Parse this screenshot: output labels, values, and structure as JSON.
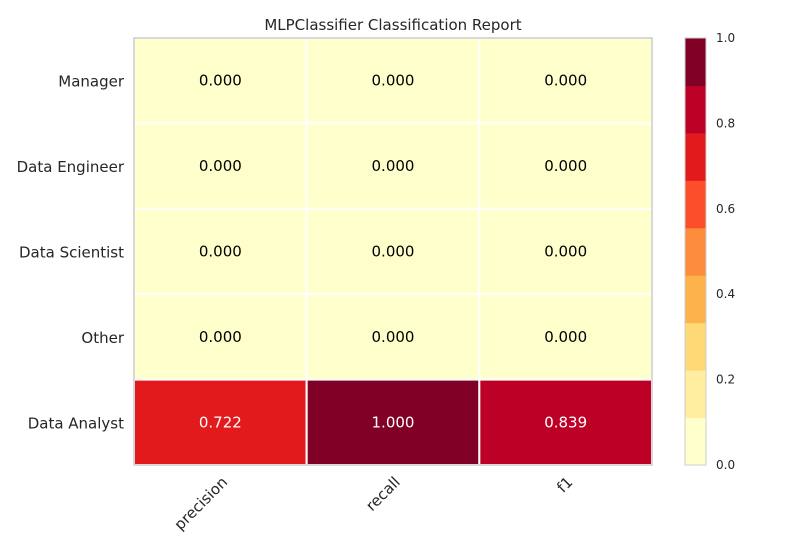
{
  "chart_data": {
    "type": "heatmap",
    "title": "MLPClassifier Classification Report",
    "rows": [
      "Manager",
      "Data Engineer",
      "Data Scientist",
      "Other",
      "Data Analyst"
    ],
    "columns": [
      "precision",
      "recall",
      "f1"
    ],
    "values": [
      [
        0.0,
        0.0,
        0.0
      ],
      [
        0.0,
        0.0,
        0.0
      ],
      [
        0.0,
        0.0,
        0.0
      ],
      [
        0.0,
        0.0,
        0.0
      ],
      [
        0.722,
        1.0,
        0.839
      ]
    ],
    "value_labels": [
      [
        "0.000",
        "0.000",
        "0.000"
      ],
      [
        "0.000",
        "0.000",
        "0.000"
      ],
      [
        "0.000",
        "0.000",
        "0.000"
      ],
      [
        "0.000",
        "0.000",
        "0.000"
      ],
      [
        "0.722",
        "1.000",
        "0.839"
      ]
    ],
    "colorbar": {
      "range": [
        0.0,
        1.0
      ],
      "ticks": [
        "0.0",
        "0.2",
        "0.4",
        "0.6",
        "0.8",
        "1.0"
      ],
      "tick_values": [
        0.0,
        0.2,
        0.4,
        0.6,
        0.8,
        1.0
      ],
      "bins": 9,
      "colors": [
        "#ffffcc",
        "#ffeda0",
        "#fed976",
        "#feb24c",
        "#fd8d3c",
        "#fc4e2a",
        "#e31a1c",
        "#bd0026",
        "#800026"
      ]
    },
    "grid": false,
    "legend": "colorbar-right"
  }
}
